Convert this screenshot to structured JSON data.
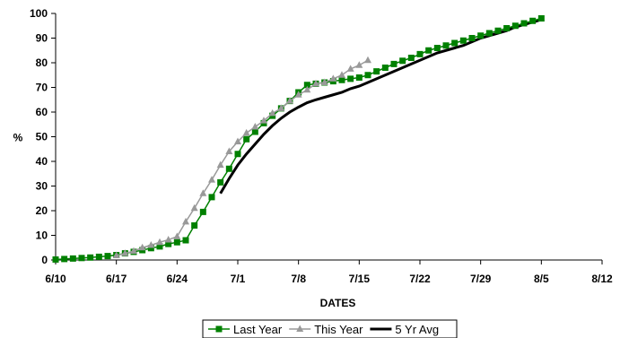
{
  "chart_data": {
    "type": "line",
    "xlabel": "DATES",
    "ylabel": "%",
    "x_axis": {
      "ticks": [
        {
          "day": 0,
          "label": "6/10"
        },
        {
          "day": 7,
          "label": "6/17"
        },
        {
          "day": 14,
          "label": "6/24"
        },
        {
          "day": 21,
          "label": "7/1"
        },
        {
          "day": 28,
          "label": "7/8"
        },
        {
          "day": 35,
          "label": "7/15"
        },
        {
          "day": 42,
          "label": "7/22"
        },
        {
          "day": 49,
          "label": "7/29"
        },
        {
          "day": 56,
          "label": "8/5"
        },
        {
          "day": 63,
          "label": "8/12"
        }
      ],
      "range": [
        0,
        63
      ]
    },
    "y_axis": {
      "ticks": [
        0,
        10,
        20,
        30,
        40,
        50,
        60,
        70,
        80,
        90,
        100
      ],
      "range": [
        0,
        100
      ]
    },
    "grid": false,
    "legend_position": "bottom-center",
    "series": [
      {
        "name": "Last Year",
        "color": "#008000",
        "marker": "square",
        "points": [
          [
            0,
            0.2
          ],
          [
            1,
            0.4
          ],
          [
            2,
            0.6
          ],
          [
            3,
            0.8
          ],
          [
            4,
            1
          ],
          [
            5,
            1.3
          ],
          [
            6,
            1.6
          ],
          [
            7,
            2
          ],
          [
            8,
            2.7
          ],
          [
            9,
            3.3
          ],
          [
            10,
            4
          ],
          [
            11,
            4.8
          ],
          [
            12,
            5.5
          ],
          [
            13,
            6.5
          ],
          [
            14,
            7.2
          ],
          [
            15,
            8
          ],
          [
            16,
            14
          ],
          [
            17,
            19.5
          ],
          [
            18,
            25.5
          ],
          [
            19,
            31.5
          ],
          [
            20,
            37
          ],
          [
            21,
            43
          ],
          [
            22,
            49
          ],
          [
            23,
            52
          ],
          [
            24,
            55.5
          ],
          [
            25,
            58.5
          ],
          [
            26,
            61.5
          ],
          [
            27,
            64.5
          ],
          [
            28,
            68
          ],
          [
            29,
            71
          ],
          [
            30,
            71.5
          ],
          [
            31,
            72
          ],
          [
            32,
            72.5
          ],
          [
            33,
            73
          ],
          [
            34,
            73.5
          ],
          [
            35,
            74
          ],
          [
            36,
            75
          ],
          [
            37,
            76.5
          ],
          [
            38,
            78
          ],
          [
            39,
            79.5
          ],
          [
            40,
            80.8
          ],
          [
            41,
            82
          ],
          [
            42,
            83.5
          ],
          [
            43,
            85
          ],
          [
            44,
            86
          ],
          [
            45,
            87
          ],
          [
            46,
            88
          ],
          [
            47,
            89
          ],
          [
            48,
            90
          ],
          [
            49,
            91
          ],
          [
            50,
            92
          ],
          [
            51,
            93
          ],
          [
            52,
            94
          ],
          [
            53,
            95
          ],
          [
            54,
            96
          ],
          [
            55,
            97
          ],
          [
            56,
            98
          ]
        ]
      },
      {
        "name": "This Year",
        "color": "#999999",
        "marker": "triangle",
        "points": [
          [
            7,
            1.8
          ],
          [
            8,
            2.7
          ],
          [
            9,
            3.6
          ],
          [
            10,
            5
          ],
          [
            11,
            6
          ],
          [
            12,
            7.2
          ],
          [
            13,
            8.2
          ],
          [
            14,
            9.5
          ],
          [
            15,
            15.5
          ],
          [
            16,
            21
          ],
          [
            17,
            27
          ],
          [
            18,
            32.5
          ],
          [
            19,
            38.5
          ],
          [
            20,
            44
          ],
          [
            21,
            48
          ],
          [
            22,
            51.5
          ],
          [
            23,
            54
          ],
          [
            24,
            56.5
          ],
          [
            25,
            59.5
          ],
          [
            26,
            61.5
          ],
          [
            27,
            64.5
          ],
          [
            28,
            67
          ],
          [
            29,
            69
          ],
          [
            30,
            71.5
          ],
          [
            31,
            72
          ],
          [
            32,
            73.5
          ],
          [
            33,
            75
          ],
          [
            34,
            77.5
          ],
          [
            35,
            79
          ],
          [
            36,
            81
          ]
        ]
      },
      {
        "name": "5 Yr Avg",
        "color": "#000000",
        "marker": "none",
        "points": [
          [
            19,
            27
          ],
          [
            20,
            33
          ],
          [
            21,
            38.5
          ],
          [
            22,
            43
          ],
          [
            23,
            47
          ],
          [
            24,
            51
          ],
          [
            25,
            54.5
          ],
          [
            26,
            57.5
          ],
          [
            27,
            60
          ],
          [
            28,
            62
          ],
          [
            29,
            63.8
          ],
          [
            30,
            65
          ],
          [
            31,
            66
          ],
          [
            32,
            67
          ],
          [
            33,
            68
          ],
          [
            34,
            69.5
          ],
          [
            35,
            70.5
          ],
          [
            36,
            72
          ],
          [
            37,
            73.5
          ],
          [
            38,
            75
          ],
          [
            39,
            76.5
          ],
          [
            40,
            78
          ],
          [
            41,
            79.5
          ],
          [
            42,
            81
          ],
          [
            43,
            82.5
          ],
          [
            44,
            84
          ],
          [
            45,
            85
          ],
          [
            46,
            86
          ],
          [
            47,
            87
          ],
          [
            48,
            88.5
          ],
          [
            49,
            90
          ],
          [
            50,
            91
          ],
          [
            51,
            92
          ],
          [
            52,
            93
          ],
          [
            53,
            94.5
          ],
          [
            54,
            95.5
          ],
          [
            55,
            96.5
          ],
          [
            56,
            97.5
          ]
        ]
      }
    ]
  }
}
